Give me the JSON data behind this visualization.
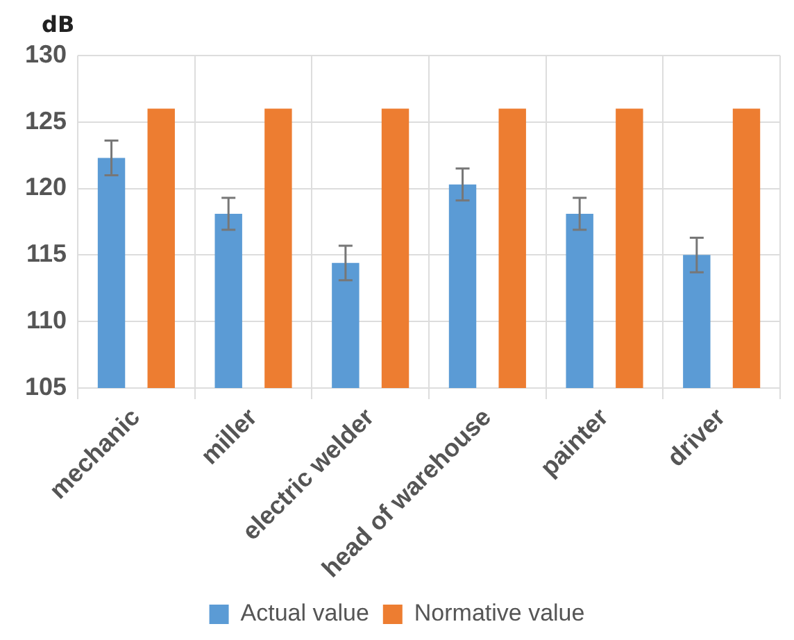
{
  "chart_data": {
    "type": "bar",
    "ylabel": "dB",
    "categories": [
      "mechanic",
      "miller",
      "electric welder",
      "head of warehouse",
      "painter",
      "driver"
    ],
    "series": [
      {
        "name": "Actual value",
        "color": "#5b9bd5",
        "values": [
          122.3,
          118.1,
          114.4,
          120.3,
          118.1,
          115.0
        ],
        "errors": [
          1.3,
          1.2,
          1.3,
          1.2,
          1.2,
          1.3
        ]
      },
      {
        "name": "Normative value",
        "color": "#ed7d31",
        "values": [
          126,
          126,
          126,
          126,
          126,
          126
        ]
      }
    ],
    "ylim": [
      105,
      130
    ],
    "yticks": [
      105,
      110,
      115,
      120,
      125,
      130
    ],
    "grid": true,
    "legend": "bottom"
  }
}
